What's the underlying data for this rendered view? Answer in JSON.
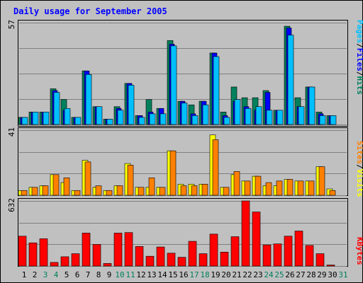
{
  "title": "Daily usage for September 2005",
  "colors": {
    "page_bg": "#c0c0c0",
    "frame": "#000000",
    "title_text": "#0000ff",
    "weekday_text": "#000000",
    "weekend_text": "#00805c",
    "hits": "#00805c",
    "files": "#0000ff",
    "pages": "#00c0ff",
    "visits": "#ffff00",
    "sites": "#ff8000",
    "kbytes": "#ff0000"
  },
  "chart_data": [
    {
      "type": "bar",
      "panel": "hits-files-pages",
      "y_max_label": "57",
      "ylim": [
        0,
        57
      ],
      "vertical_labels": [
        "Pages",
        "/",
        "Files",
        "/",
        "Hits"
      ],
      "categories": [
        "1",
        "2",
        "3",
        "4",
        "5",
        "6",
        "7",
        "8",
        "9",
        "10",
        "11",
        "12",
        "13",
        "14",
        "15",
        "16",
        "17",
        "18",
        "19",
        "20",
        "21",
        "22",
        "23",
        "24",
        "25",
        "26",
        "27",
        "28",
        "29",
        "30"
      ],
      "weekend_days": [
        "3",
        "4",
        "10",
        "11",
        "17",
        "18",
        "24",
        "25"
      ],
      "series": [
        {
          "name": "Hits",
          "color_key": "hits",
          "values": [
            4,
            7,
            7,
            20,
            14,
            4,
            30,
            10,
            3,
            10,
            23,
            5,
            14,
            9,
            47,
            13,
            11,
            13,
            40,
            7,
            21,
            15,
            15,
            19,
            8,
            55,
            15,
            21,
            7,
            5
          ]
        },
        {
          "name": "Files",
          "color_key": "files",
          "values": [
            4,
            7,
            7,
            19,
            8,
            4,
            30,
            10,
            3,
            9,
            23,
            5,
            7,
            9,
            45,
            13,
            6,
            13,
            40,
            5,
            13,
            10,
            8,
            18,
            8,
            54,
            10,
            21,
            6,
            5
          ]
        },
        {
          "name": "Pages",
          "color_key": "pages",
          "values": [
            4,
            7,
            7,
            18,
            9,
            4,
            28,
            10,
            3,
            8,
            22,
            4,
            6,
            6,
            44,
            12,
            5,
            11,
            38,
            4,
            14,
            9,
            10,
            8,
            8,
            50,
            10,
            21,
            5,
            5
          ]
        }
      ]
    },
    {
      "type": "bar",
      "panel": "visits-sites",
      "y_max_label": "41",
      "ylim": [
        0,
        41
      ],
      "vertical_labels": [
        "Sites",
        "/",
        "Visits"
      ],
      "categories": [
        "1",
        "2",
        "3",
        "4",
        "5",
        "6",
        "7",
        "8",
        "9",
        "10",
        "11",
        "12",
        "13",
        "14",
        "15",
        "16",
        "17",
        "18",
        "19",
        "20",
        "21",
        "22",
        "23",
        "24",
        "25",
        "26",
        "27",
        "28",
        "29",
        "30"
      ],
      "series": [
        {
          "name": "Visits",
          "color_key": "visits",
          "values": [
            3,
            5,
            6,
            13,
            8,
            3,
            22,
            5,
            3,
            6,
            20,
            5,
            5,
            5,
            28,
            7,
            7,
            7,
            38,
            5,
            13,
            9,
            12,
            6,
            6,
            10,
            9,
            9,
            18,
            4
          ]
        },
        {
          "name": "Sites",
          "color_key": "sites",
          "values": [
            3,
            5,
            6,
            13,
            11,
            3,
            21,
            6,
            3,
            6,
            19,
            5,
            11,
            5,
            28,
            6,
            6,
            7,
            35,
            5,
            15,
            9,
            12,
            8,
            9,
            10,
            9,
            9,
            18,
            3
          ]
        }
      ]
    },
    {
      "type": "bar",
      "panel": "kbytes",
      "y_max_label": "632",
      "ylim": [
        0,
        632
      ],
      "vertical_labels": [
        "KBytes"
      ],
      "categories": [
        "1",
        "2",
        "3",
        "4",
        "5",
        "6",
        "7",
        "8",
        "9",
        "10",
        "11",
        "12",
        "13",
        "14",
        "15",
        "16",
        "17",
        "18",
        "19",
        "20",
        "21",
        "22",
        "23",
        "24",
        "25",
        "26",
        "27",
        "28",
        "29",
        "30"
      ],
      "series": [
        {
          "name": "KBytes",
          "color_key": "kbytes",
          "values": [
            290,
            225,
            265,
            35,
            90,
            120,
            320,
            210,
            25,
            320,
            325,
            190,
            95,
            185,
            125,
            85,
            240,
            120,
            310,
            135,
            285,
            632,
            525,
            205,
            215,
            290,
            340,
            200,
            120,
            10
          ]
        }
      ]
    }
  ],
  "x_axis": {
    "labels": [
      "1",
      "2",
      "3",
      "4",
      "5",
      "6",
      "7",
      "8",
      "9",
      "10",
      "11",
      "12",
      "13",
      "14",
      "15",
      "16",
      "17",
      "18",
      "19",
      "20",
      "21",
      "22",
      "23",
      "24",
      "25",
      "26",
      "27",
      "28",
      "29",
      "30",
      "31"
    ],
    "weekend_days": [
      "3",
      "4",
      "10",
      "11",
      "17",
      "18",
      "24",
      "25",
      "31"
    ]
  }
}
